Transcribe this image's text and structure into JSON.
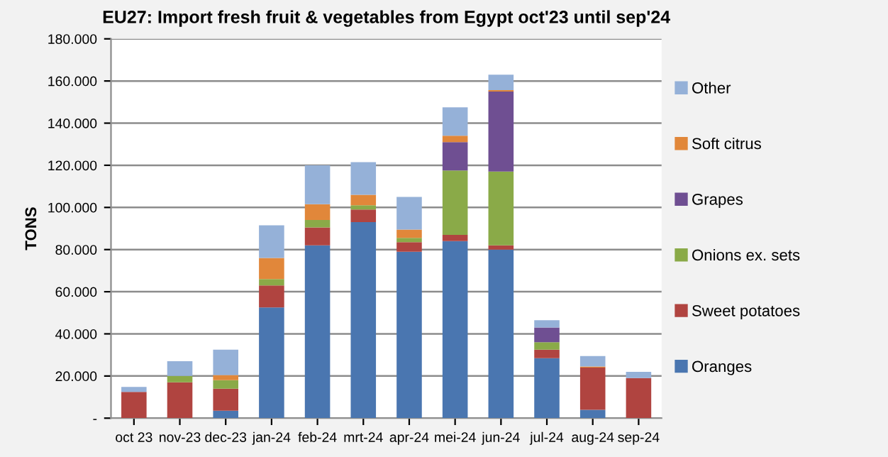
{
  "chart_data": {
    "type": "bar",
    "stacked": true,
    "title": "EU27: Import fresh fruit & vegetables from Egypt oct'23 until sep'24",
    "ylabel": "TONS",
    "categories": [
      "oct 23",
      "nov-23",
      "dec-23",
      "jan-24",
      "feb-24",
      "mrt-24",
      "apr-24",
      "mei-24",
      "jun-24",
      "jul-24",
      "aug-24",
      "sep-24"
    ],
    "series": [
      {
        "name": "Oranges",
        "color": "#4a76b0",
        "values": [
          0,
          0,
          3.5,
          52.5,
          82,
          93,
          79,
          84,
          80,
          28.5,
          4,
          0
        ]
      },
      {
        "name": "Sweet potatoes",
        "color": "#b04440",
        "values": [
          12.5,
          17,
          10.5,
          10.5,
          8.5,
          6,
          4.5,
          3,
          2,
          4,
          20,
          19
        ]
      },
      {
        "name": "Onions ex. sets",
        "color": "#8aaa48",
        "values": [
          0,
          3,
          4,
          3,
          3.5,
          2,
          2,
          30.5,
          35,
          3.5,
          0,
          0
        ]
      },
      {
        "name": "Grapes",
        "color": "#6f4f92",
        "values": [
          0,
          0,
          0,
          0,
          0,
          0,
          0,
          13.5,
          38,
          7,
          0,
          0
        ]
      },
      {
        "name": "Soft citrus",
        "color": "#e1873a",
        "values": [
          0,
          0,
          2.5,
          10,
          7.5,
          5,
          4,
          3,
          0.7,
          0,
          0.5,
          0
        ]
      },
      {
        "name": "Other",
        "color": "#95b1d8",
        "values": [
          2.3,
          7,
          12,
          15.5,
          18.5,
          15.5,
          15.5,
          13.5,
          7.3,
          3.5,
          5,
          3
        ]
      }
    ],
    "ylim": [
      0,
      180
    ],
    "yticks": [
      {
        "value": 0,
        "label": "-"
      },
      {
        "value": 20,
        "label": "20.000"
      },
      {
        "value": 40,
        "label": "40.000"
      },
      {
        "value": 60,
        "label": "60.000"
      },
      {
        "value": 80,
        "label": "80.000"
      },
      {
        "value": 100,
        "label": "100.000"
      },
      {
        "value": 120,
        "label": "120.000"
      },
      {
        "value": 140,
        "label": "140.000"
      },
      {
        "value": 160,
        "label": "160.000"
      },
      {
        "value": 180,
        "label": "180.000"
      }
    ],
    "grid": "y",
    "legend": "right"
  }
}
